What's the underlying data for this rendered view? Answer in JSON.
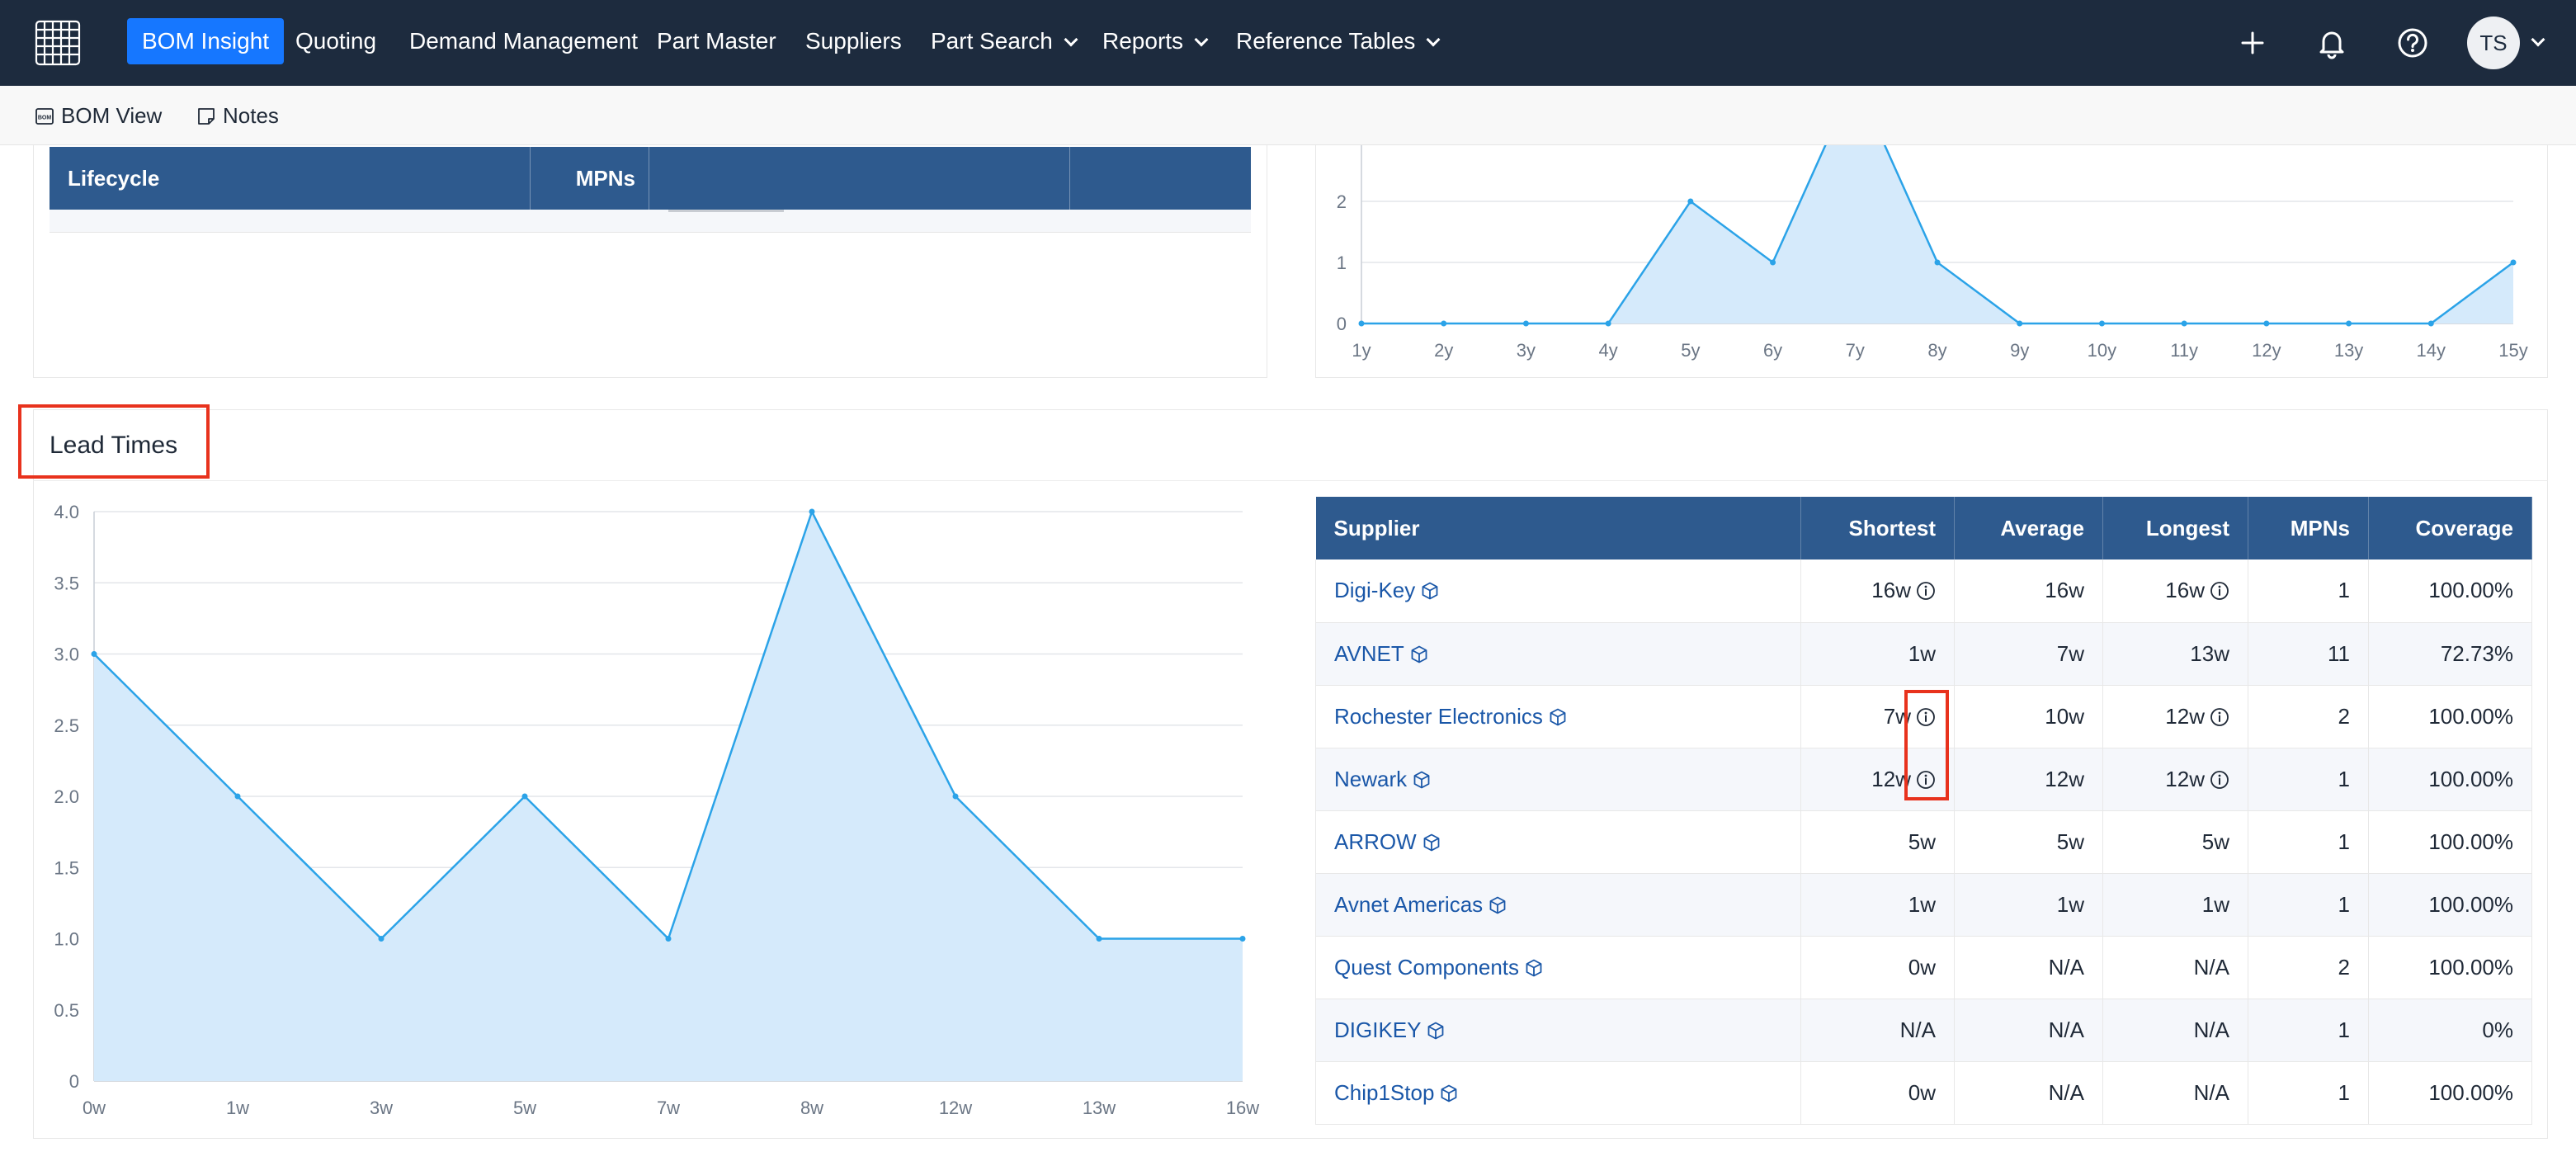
{
  "nav": {
    "items": [
      {
        "label": "BOM Insight",
        "active": true,
        "dropdown": false
      },
      {
        "label": "Quoting",
        "active": false,
        "dropdown": false
      },
      {
        "label": "Demand Management",
        "active": false,
        "dropdown": false
      },
      {
        "label": "Part Master",
        "active": false,
        "dropdown": false
      },
      {
        "label": "Suppliers",
        "active": false,
        "dropdown": false
      },
      {
        "label": "Part Search",
        "active": false,
        "dropdown": true
      },
      {
        "label": "Reports",
        "active": false,
        "dropdown": true
      },
      {
        "label": "Reference Tables",
        "active": false,
        "dropdown": true
      }
    ],
    "icons": [
      "plus-icon",
      "bell-icon",
      "help-icon"
    ],
    "avatar_initials": "TS"
  },
  "subbar": {
    "bom_view_label": "BOM View",
    "notes_label": "Notes"
  },
  "lifecycle_table": {
    "headers": [
      "Lifecycle",
      "MPNs",
      "",
      ""
    ]
  },
  "age_chart": {
    "x_labels": [
      "1y",
      "2y",
      "3y",
      "4y",
      "5y",
      "6y",
      "7y",
      "8y",
      "9y",
      "10y",
      "11y",
      "12y",
      "13y",
      "14y",
      "15y"
    ],
    "y_labels": [
      "0",
      "1",
      "2"
    ],
    "values": [
      0,
      0,
      0,
      0,
      2,
      1,
      4,
      1,
      0,
      0,
      0,
      0,
      0,
      0,
      1
    ]
  },
  "lead_times": {
    "title": "Lead Times"
  },
  "chart_data": {
    "type": "area",
    "x": [
      "0w",
      "1w",
      "3w",
      "5w",
      "7w",
      "8w",
      "12w",
      "13w",
      "16w"
    ],
    "values": [
      3,
      2,
      1,
      2,
      1,
      4,
      2,
      1,
      1
    ],
    "y_ticks": [
      "0",
      "0.5",
      "1.0",
      "1.5",
      "2.0",
      "2.5",
      "3.0",
      "3.5",
      "4.0"
    ],
    "ylim": [
      0,
      4
    ],
    "grid": true,
    "color": "#2ba3e8",
    "fill": "#d5eafb"
  },
  "supplier_table": {
    "headers": [
      "Supplier",
      "Shortest",
      "Average",
      "Longest",
      "MPNs",
      "Coverage"
    ],
    "rows": [
      {
        "supplier": "Digi-Key",
        "shortest": "16w",
        "shortest_info": true,
        "average": "16w",
        "longest": "16w",
        "longest_info": true,
        "mpns": "1",
        "coverage": "100.00%"
      },
      {
        "supplier": "AVNET",
        "shortest": "1w",
        "shortest_info": false,
        "average": "7w",
        "longest": "13w",
        "longest_info": false,
        "mpns": "11",
        "coverage": "72.73%"
      },
      {
        "supplier": "Rochester Electronics",
        "shortest": "7w",
        "shortest_info": true,
        "average": "10w",
        "longest": "12w",
        "longest_info": true,
        "mpns": "2",
        "coverage": "100.00%"
      },
      {
        "supplier": "Newark",
        "shortest": "12w",
        "shortest_info": true,
        "average": "12w",
        "longest": "12w",
        "longest_info": true,
        "mpns": "1",
        "coverage": "100.00%"
      },
      {
        "supplier": "ARROW",
        "shortest": "5w",
        "shortest_info": false,
        "average": "5w",
        "longest": "5w",
        "longest_info": false,
        "mpns": "1",
        "coverage": "100.00%"
      },
      {
        "supplier": "Avnet Americas",
        "shortest": "1w",
        "shortest_info": false,
        "average": "1w",
        "longest": "1w",
        "longest_info": false,
        "mpns": "1",
        "coverage": "100.00%"
      },
      {
        "supplier": "Quest Components",
        "shortest": "0w",
        "shortest_info": false,
        "average": "N/A",
        "longest": "N/A",
        "longest_info": false,
        "mpns": "2",
        "coverage": "100.00%"
      },
      {
        "supplier": "DIGIKEY",
        "shortest": "N/A",
        "shortest_info": false,
        "average": "N/A",
        "longest": "N/A",
        "longest_info": false,
        "mpns": "1",
        "coverage": "0%"
      },
      {
        "supplier": "Chip1Stop",
        "shortest": "0w",
        "shortest_info": false,
        "average": "N/A",
        "longest": "N/A",
        "longest_info": false,
        "mpns": "1",
        "coverage": "100.00%"
      }
    ]
  }
}
